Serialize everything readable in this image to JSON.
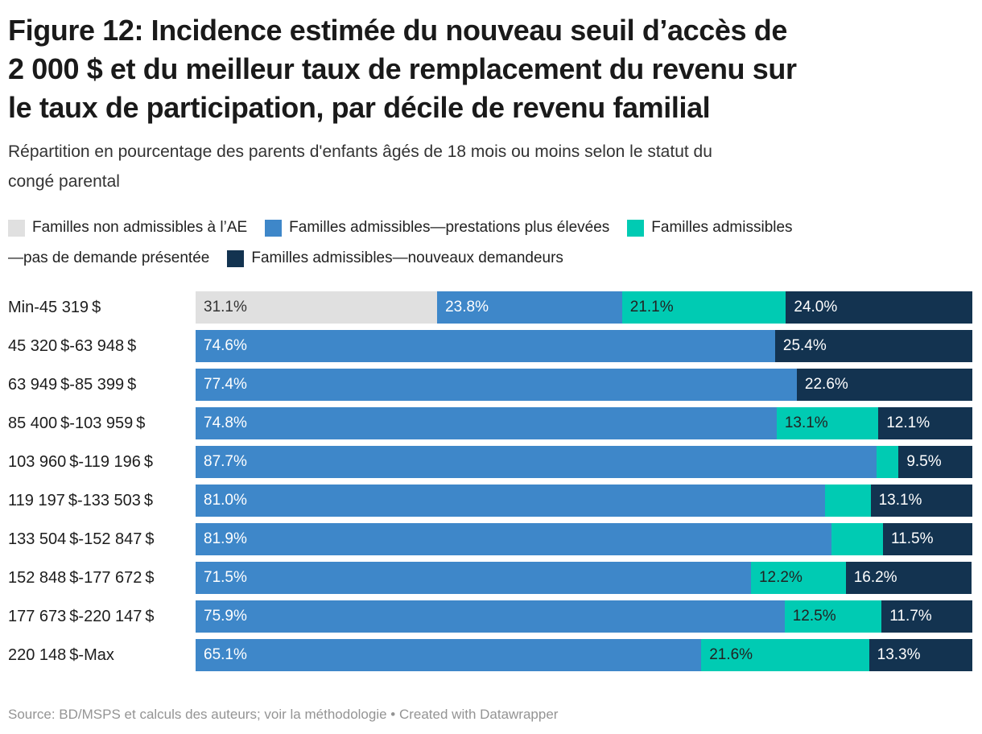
{
  "header": {
    "title_lines": [
      "Figure 12: Incidence estimée du nouveau seuil d’accès de",
      "2 000 $ et du meilleur taux de remplacement du revenu sur",
      "le taux de participation, par décile de revenu familial"
    ],
    "subtitle_lines": [
      "Répartition en pourcentage des parents d'enfants âgés de 18 mois ou moins selon le statut du",
      "congé parental"
    ]
  },
  "colors": {
    "not_eligible": {
      "bg": "#e0e0e0",
      "label": "#333333"
    },
    "higher_benefits": {
      "bg": "#3e87c9",
      "label": "#ffffff"
    },
    "no_claim": {
      "bg": "#00cbb3",
      "label": "#222222"
    },
    "new_claimants": {
      "bg": "#133350",
      "label": "#ffffff"
    }
  },
  "legend": {
    "rows": [
      [
        {
          "color_key": "not_eligible",
          "text": "Familles non admissibles à l’AE"
        },
        {
          "color_key": "higher_benefits",
          "text": "Familles admissibles—prestations plus élevées"
        },
        {
          "color_key": "no_claim",
          "text": "Familles admissibles"
        }
      ],
      [
        {
          "text": "—pas de demande présentée"
        },
        {
          "color_key": "new_claimants",
          "text": "Familles admissibles—nouveaux demandeurs"
        }
      ]
    ]
  },
  "chart_data": {
    "type": "bar",
    "stacked": true,
    "horizontal": true,
    "unit": "%",
    "xlim": [
      0,
      100
    ],
    "grid": false,
    "legend_position": "top",
    "title": "Figure 12: Incidence estimée du nouveau seuil d’accès de 2 000 $ et du meilleur taux de remplacement du revenu sur le taux de participation, par décile de revenu familial",
    "subtitle": "Répartition en pourcentage des parents d'enfants âgés de 18 mois ou moins selon le statut du congé parental",
    "categories": [
      "Min-45 319 $",
      "45 320 $-63 948 $",
      "63 949 $-85 399 $",
      "85 400 $-103 959 $",
      "103 960 $-119 196 $",
      "119 197 $-133 503 $",
      "133 504 $-152 847 $",
      "152 848 $-177 672 $",
      "177 673 $-220 147 $",
      "220 148 $-Max"
    ],
    "series": [
      {
        "name": "Familles non admissibles à l’AE",
        "color_key": "not_eligible",
        "values": [
          31.1,
          null,
          null,
          null,
          null,
          null,
          null,
          null,
          null,
          null
        ],
        "unlabeled_indices": []
      },
      {
        "name": "Familles admissibles—prestations plus élevées",
        "color_key": "higher_benefits",
        "values": [
          23.8,
          74.6,
          77.4,
          74.8,
          87.7,
          81.0,
          81.9,
          71.5,
          75.9,
          65.1
        ],
        "unlabeled_indices": []
      },
      {
        "name": "Familles admissibles—pas de demande présentée",
        "color_key": "no_claim",
        "values": [
          21.1,
          null,
          null,
          13.1,
          2.8,
          5.9,
          6.6,
          12.2,
          12.5,
          21.6
        ],
        "unlabeled_indices": [
          4,
          5,
          6
        ]
      },
      {
        "name": "Familles admissibles—nouveaux demandeurs",
        "color_key": "new_claimants",
        "values": [
          24.0,
          25.4,
          22.6,
          12.1,
          9.5,
          13.1,
          11.5,
          16.2,
          11.7,
          13.3
        ],
        "unlabeled_indices": []
      }
    ]
  },
  "footer": {
    "text": "Source: BD/MSPS et calculs des auteurs; voir la méthodologie • Created with Datawrapper"
  }
}
